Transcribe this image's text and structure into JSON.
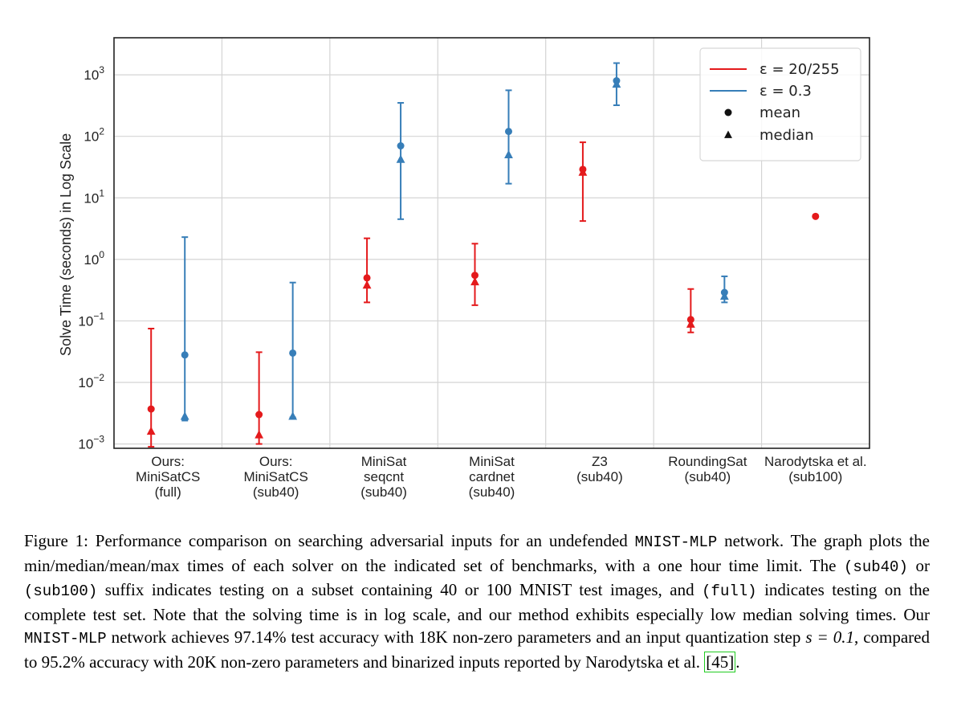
{
  "chart_data": {
    "type": "scatter",
    "y_scale": "log",
    "ylim": [
      0.00085,
      4000
    ],
    "ylabel": "Solve Time (seconds) in Log Scale",
    "y_ticks": [
      {
        "value": 0.001,
        "base": "10",
        "exp": "−3"
      },
      {
        "value": 0.01,
        "base": "10",
        "exp": "−2"
      },
      {
        "value": 0.1,
        "base": "10",
        "exp": "−1"
      },
      {
        "value": 1,
        "base": "10",
        "exp": "0"
      },
      {
        "value": 10,
        "base": "10",
        "exp": "1"
      },
      {
        "value": 100,
        "base": "10",
        "exp": "2"
      },
      {
        "value": 1000,
        "base": "10",
        "exp": "3"
      }
    ],
    "grid": true,
    "legend_position": "top-right",
    "categories": [
      [
        "Ours:",
        "MiniSatCS",
        "(full)"
      ],
      [
        "Ours:",
        "MiniSatCS",
        "(sub40)"
      ],
      [
        "MiniSat",
        "seqcnt",
        "(sub40)"
      ],
      [
        "MiniSat",
        "cardnet",
        "(sub40)"
      ],
      [
        "Z3",
        "(sub40)"
      ],
      [
        "RoundingSat",
        "(sub40)"
      ],
      [
        "Narodytska et al.",
        "(sub100)"
      ]
    ],
    "series": [
      {
        "name": "ε = 20/255",
        "color": "#e41a1c",
        "points": [
          {
            "category": 0,
            "min": 0.0009,
            "max": 0.075,
            "mean": 0.0037,
            "median": 0.0016
          },
          {
            "category": 1,
            "min": 0.001,
            "max": 0.031,
            "mean": 0.003,
            "median": 0.0014
          },
          {
            "category": 2,
            "min": 0.2,
            "max": 2.2,
            "mean": 0.5,
            "median": 0.38
          },
          {
            "category": 3,
            "min": 0.18,
            "max": 1.8,
            "mean": 0.55,
            "median": 0.43
          },
          {
            "category": 4,
            "min": 4.2,
            "max": 80,
            "mean": 29,
            "median": 26
          },
          {
            "category": 5,
            "min": 0.065,
            "max": 0.33,
            "mean": 0.105,
            "median": 0.088
          },
          {
            "category": 6,
            "min": null,
            "max": null,
            "mean": 5,
            "median": null
          }
        ]
      },
      {
        "name": "ε = 0.3",
        "color": "#377eb8",
        "points": [
          {
            "category": 0,
            "min": 0.0024,
            "max": 2.3,
            "mean": 0.028,
            "median": 0.0028
          },
          {
            "category": 1,
            "min": 0.0027,
            "max": 0.42,
            "mean": 0.03,
            "median": 0.0028
          },
          {
            "category": 2,
            "min": 4.5,
            "max": 350,
            "mean": 70,
            "median": 42
          },
          {
            "category": 3,
            "min": 17,
            "max": 560,
            "mean": 120,
            "median": 50
          },
          {
            "category": 4,
            "min": 320,
            "max": 1550,
            "mean": 800,
            "median": 700
          },
          {
            "category": 5,
            "min": 0.2,
            "max": 0.53,
            "mean": 0.29,
            "median": 0.25
          }
        ]
      }
    ],
    "legend_markers": [
      {
        "label": "mean",
        "marker": "circle"
      },
      {
        "label": "median",
        "marker": "triangle"
      }
    ]
  },
  "caption": {
    "p1": "Figure 1: Performance comparison on searching adversarial inputs for an undefended ",
    "c1": "MNIST-MLP",
    "p2": " network. The graph plots the min/median/mean/max times of each solver on the indicated set of benchmarks, with a one hour time limit. The ",
    "c2": "(sub40)",
    "p3": " or ",
    "c3": "(sub100)",
    "p4": " suffix indicates testing on a subset containing 40 or 100 MNIST test images, and ",
    "c4": "(full)",
    "p5": " indicates testing on the complete test set. Note that the solving time is in log scale, and our method exhibits especially low median solving times. Our ",
    "c5": "MNIST-MLP",
    "p6": " network achieves 97.14% test accuracy with 18K non-zero parameters and an input quantization step ",
    "m1": "s = 0.1",
    "p7": ", compared to 95.2% accuracy with 20K non-zero parameters and binarized inputs reported by Narodytska et al. ",
    "ref": "[45]",
    "p8": "."
  }
}
